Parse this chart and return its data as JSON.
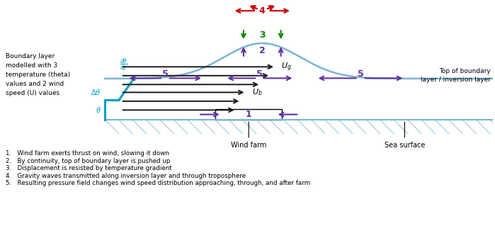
{
  "bg_color": "#ffffff",
  "boundary_layer_color": "#7ab4d4",
  "ground_color": "#7ab4d4",
  "hatch_color": "#7ab4d4",
  "arrow_black": "#1a1a1a",
  "arrow_purple": "#6030a0",
  "arrow_green": "#008800",
  "arrow_red": "#cc0000",
  "text_cyan": "#00a0c8",
  "label_left": "Boundary layer\nmodelled with 3\ntemperature (theta)\nvalues and 2 wind\nspeed (U) values",
  "label_top_right": "Top of boundary\nlayer / inversion layer",
  "label_wind_farm": "Wind farm",
  "label_sea": "Sea surface",
  "footnotes": [
    "1.   Wind farm exerts thrust on wind, slowing it down",
    "2.   By continuity, top of boundary layer is pushed up",
    "3.   Displacement is resisted by temperature gradient",
    "4.   Gravity waves transmitted along inversion layer and through troposphere",
    "5.   Resulting pressure field changes wind speed distribution approaching, through, and after farm"
  ]
}
